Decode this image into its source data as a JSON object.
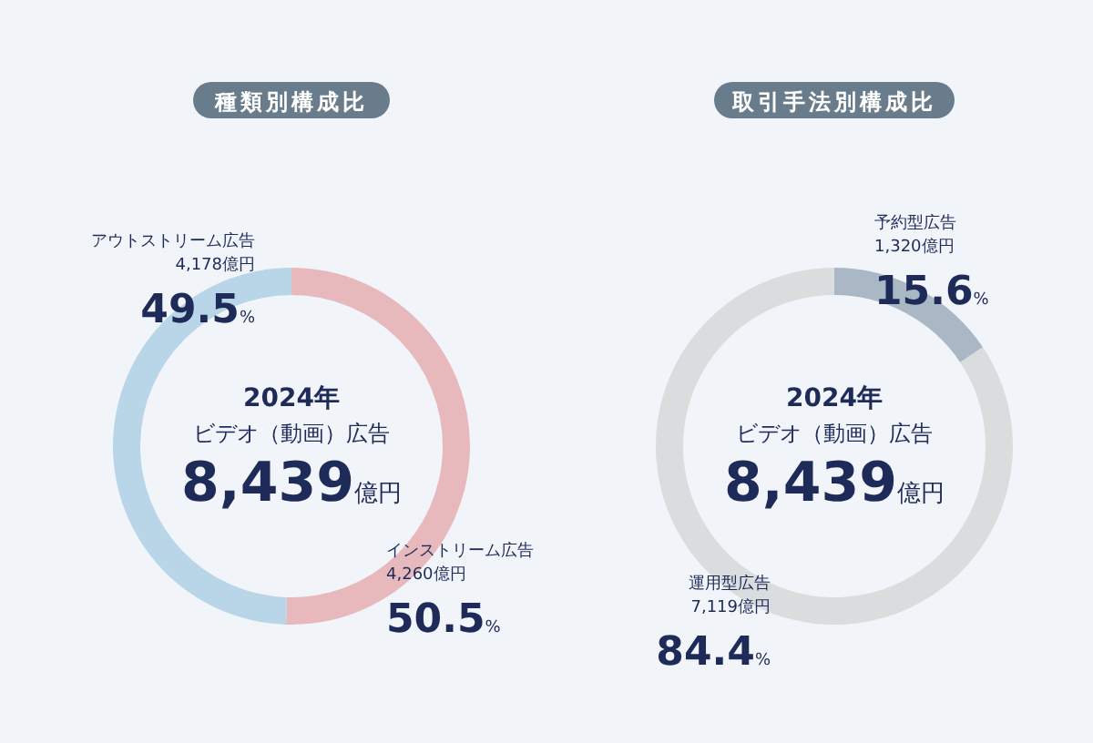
{
  "chart_data": [
    {
      "type": "donut",
      "title": "種類別構成比",
      "categories": [
        "インストリーム広告",
        "アウトストリーム広告"
      ],
      "values": [
        4260,
        4178
      ],
      "colors": [
        "#e8b9bc",
        "#b9d5e8"
      ],
      "value_labels": [
        "4,260億円",
        "4,178億円"
      ],
      "annotations": [
        "2024年",
        "ビデオ（動画）広告",
        "8,439億円",
        {
          "text": "50.5%",
          "x": "インストリーム広告"
        },
        {
          "text": "49.5%",
          "x": "アウトストリーム広告"
        }
      ]
    },
    {
      "type": "donut",
      "title": "取引手法別構成比",
      "categories": [
        "予約型広告",
        "運用型広告"
      ],
      "values": [
        1320,
        7119
      ],
      "colors": [
        "#a9b8c4",
        "#d9dddd"
      ],
      "value_labels": [
        "1,320億円",
        "7,119億円"
      ],
      "annotations": [
        "2024年",
        "ビデオ（動画）広告",
        "8,439億円",
        {
          "text": "15.6%",
          "x": "予約型広告"
        },
        {
          "text": "84.4%",
          "x": "運用型広告"
        }
      ]
    }
  ]
}
